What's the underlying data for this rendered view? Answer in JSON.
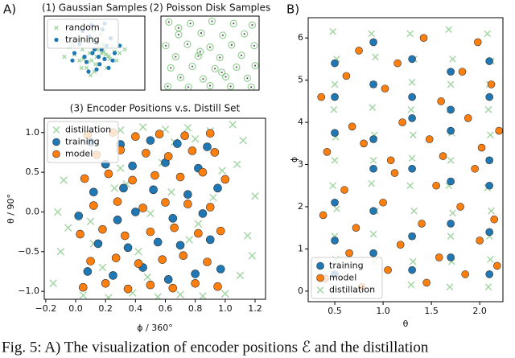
{
  "figure": {
    "panel_labels": [
      "A)",
      "B)"
    ],
    "caption": "Fig. 5: A) The visualization of encoder positions ℰ and the distillation"
  },
  "chart_data": [
    {
      "type": "scatter",
      "title": "(1) Gaussian Samples",
      "xlim": [
        0,
        1
      ],
      "ylim": [
        0,
        1
      ],
      "legend": "upper left",
      "series": [
        {
          "name": "random",
          "color": "#2ca02c",
          "marker": "x",
          "x": [
            0.45,
            0.52,
            0.38,
            0.6,
            0.55,
            0.3,
            0.7,
            0.48,
            0.42,
            0.58,
            0.65,
            0.35,
            0.5,
            0.25,
            0.75,
            0.44,
            0.56,
            0.62,
            0.4,
            0.53,
            0.33,
            0.68,
            0.47,
            0.57,
            0.2,
            0.8,
            0.5,
            0.43,
            0.61,
            0.37,
            0.72,
            0.28,
            0.54,
            0.46,
            0.66,
            0.39,
            0.59,
            0.51,
            0.36,
            0.64
          ],
          "y": [
            0.5,
            0.45,
            0.55,
            0.6,
            0.35,
            0.48,
            0.52,
            0.7,
            0.3,
            0.62,
            0.42,
            0.4,
            0.25,
            0.58,
            0.5,
            0.65,
            0.75,
            0.3,
            0.45,
            0.55,
            0.68,
            0.6,
            0.4,
            0.5,
            0.45,
            0.55,
            0.8,
            0.38,
            0.48,
            0.3,
            0.4,
            0.62,
            0.58,
            0.2,
            0.7,
            0.42,
            0.52,
            0.35,
            0.72,
            0.46
          ]
        },
        {
          "name": "training",
          "color": "#1f77b4",
          "marker": "dot",
          "x": [
            0.5,
            0.62,
            0.4,
            0.55,
            0.7,
            0.35,
            0.45,
            0.6,
            0.52,
            0.3,
            0.66,
            0.48,
            0.57,
            0.42,
            0.75,
            0.38,
            0.58,
            0.5,
            0.64,
            0.44,
            0.54,
            0.28,
            0.68,
            0.47,
            0.6
          ],
          "y": [
            0.55,
            0.6,
            0.45,
            0.35,
            0.5,
            0.62,
            0.72,
            0.42,
            0.28,
            0.5,
            0.7,
            0.5,
            0.55,
            0.38,
            0.6,
            0.8,
            0.82,
            0.65,
            0.3,
            0.25,
            0.45,
            0.4,
            0.4,
            0.88,
            0.9
          ]
        }
      ]
    },
    {
      "type": "scatter",
      "title": "(2) Poisson Disk Samples",
      "xlim": [
        0,
        1
      ],
      "ylim": [
        0,
        1
      ],
      "series": [
        {
          "color": "#2ca02c",
          "marker": "ring",
          "x": [
            0.08,
            0.3,
            0.52,
            0.74,
            0.93,
            0.18,
            0.41,
            0.63,
            0.85,
            0.05,
            0.27,
            0.5,
            0.72,
            0.95,
            0.15,
            0.38,
            0.6,
            0.82,
            0.1,
            0.32,
            0.55,
            0.77,
            0.96,
            0.2,
            0.43,
            0.66,
            0.88,
            0.07,
            0.28,
            0.5,
            0.71,
            0.92,
            0.18,
            0.4,
            0.62
          ],
          "y": [
            0.92,
            0.9,
            0.93,
            0.9,
            0.88,
            0.75,
            0.77,
            0.74,
            0.76,
            0.6,
            0.62,
            0.58,
            0.61,
            0.6,
            0.45,
            0.46,
            0.44,
            0.47,
            0.3,
            0.32,
            0.29,
            0.31,
            0.33,
            0.17,
            0.15,
            0.18,
            0.16,
            0.05,
            0.04,
            0.06,
            0.05,
            0.04,
            0.84,
            0.52,
            0.24
          ]
        }
      ]
    },
    {
      "type": "scatter",
      "title": "(3) Encoder Positions v.s. Distill Set",
      "xlabel": "ϕ / 360°",
      "ylabel": "θ / 90°",
      "xlim": [
        -0.21,
        1.27
      ],
      "ylim": [
        -1.1,
        1.18
      ],
      "legend": "upper left",
      "xticks": [
        {
          "value": -0.2,
          "label": "−0.2"
        },
        {
          "value": 0,
          "label": "0.0"
        },
        0.2,
        0.4,
        0.6,
        0.8,
        {
          "value": 1,
          "label": "1.0"
        },
        1.2
      ],
      "yticks": [
        {
          "value": -1,
          "label": "−1.0"
        },
        {
          "value": -0.5,
          "label": "−0.5"
        },
        {
          "value": 0,
          "label": "0.0"
        },
        0.5,
        {
          "value": 1,
          "label": "1.0"
        }
      ],
      "series": [
        {
          "name": "distillation",
          "color": "#2ca02c",
          "marker": "x",
          "x": [
            -0.15,
            -0.1,
            -0.12,
            -0.08,
            -0.14,
            -0.05,
            1.1,
            1.15,
            1.2,
            1.08,
            1.12,
            1.18,
            0.0,
            0.15,
            0.3,
            0.45,
            0.6,
            0.75,
            0.9,
            1.05,
            0.05,
            0.22,
            0.38,
            0.55,
            0.7,
            0.85,
            1.0,
            0.1,
            0.26,
            0.42,
            0.58,
            0.76,
            0.92,
            0.02,
            0.18,
            0.34,
            0.5,
            0.66,
            0.82,
            0.98,
            0.12,
            0.3,
            0.48,
            0.64,
            0.8
          ],
          "y": [
            -0.9,
            -0.5,
            0.0,
            0.4,
            0.8,
            -0.2,
            -0.8,
            -0.3,
            0.2,
            0.6,
            0.9,
            -0.55,
            1.05,
            1.08,
            1.03,
            1.07,
            1.04,
            1.06,
            1.02,
            1.1,
            -1.05,
            -1.08,
            -1.02,
            -1.07,
            -1.04,
            -1.06,
            -1.03,
            -0.12,
            0.3,
            -0.5,
            0.62,
            -0.35,
            0.18,
            0.7,
            -0.7,
            0.35,
            -0.02,
            0.88,
            -0.15,
            0.52,
            -0.4,
            0.55,
            -0.82,
            0.25,
            0.92
          ]
        },
        {
          "name": "training",
          "color": "#1f77b4",
          "marker": "o",
          "x": [
            0.08,
            0.25,
            0.45,
            0.62,
            0.8,
            0.97,
            0.15,
            0.35,
            0.55,
            0.7,
            0.9,
            0.02,
            0.28,
            0.4,
            0.65,
            0.85,
            0.12,
            0.32,
            0.52,
            0.75,
            0.95,
            0.2,
            0.38,
            0.6,
            0.82,
            0.1,
            0.3,
            0.5,
            0.68,
            0.88
          ],
          "y": [
            -0.75,
            -0.8,
            -0.7,
            -0.85,
            -0.78,
            -0.72,
            -0.4,
            -0.45,
            -0.38,
            -0.42,
            -0.35,
            -0.05,
            -0.1,
            0.0,
            -0.08,
            -0.02,
            0.25,
            0.3,
            0.28,
            0.22,
            0.3,
            0.6,
            0.58,
            0.62,
            0.55,
            0.88,
            0.85,
            0.9,
            0.86,
            0.82
          ]
        },
        {
          "name": "model",
          "color": "#ff7f0e",
          "marker": "o",
          "x": [
            0.05,
            0.2,
            0.35,
            0.5,
            0.65,
            0.8,
            0.95,
            0.1,
            0.27,
            0.42,
            0.58,
            0.72,
            0.88,
            0.03,
            0.18,
            0.33,
            0.5,
            0.66,
            0.82,
            0.97,
            0.12,
            0.28,
            0.45,
            0.6,
            0.75,
            0.9,
            0.06,
            0.22,
            0.38,
            0.53,
            0.7,
            0.85,
            1.0,
            0.14,
            0.3,
            0.47,
            0.62,
            0.78,
            0.93,
            0.08,
            0.25,
            0.4,
            0.56,
            0.73,
            0.9
          ],
          "y": [
            -0.95,
            -0.9,
            -0.97,
            -0.92,
            -0.96,
            -0.9,
            -0.94,
            -0.62,
            -0.58,
            -0.65,
            -0.6,
            -0.55,
            -0.63,
            -0.28,
            -0.22,
            -0.3,
            -0.25,
            -0.2,
            -0.27,
            -0.24,
            0.08,
            0.13,
            0.05,
            0.12,
            0.1,
            0.06,
            0.42,
            0.48,
            0.4,
            0.46,
            0.44,
            0.5,
            0.41,
            0.72,
            0.78,
            0.74,
            0.7,
            0.77,
            0.75,
            0.97,
            1.0,
            0.95,
            0.98,
            0.96,
            0.99
          ]
        }
      ]
    },
    {
      "type": "scatter",
      "xlabel": "θ",
      "ylabel": "ϕ",
      "xlim": [
        0.225,
        2.24
      ],
      "ylim": [
        -0.25,
        6.48
      ],
      "legend": "lower left",
      "xticks": [
        0.5,
        {
          "value": 1,
          "label": "1.0"
        },
        1.5,
        {
          "value": 2,
          "label": "2.0"
        }
      ],
      "yticks": [
        0,
        1,
        2,
        3,
        4,
        5,
        6
      ],
      "series": [
        {
          "name": "training",
          "color": "#1f77b4",
          "marker": "o",
          "x": [
            0.5,
            0.5,
            0.5,
            0.5,
            0.5,
            0.5,
            0.9,
            0.9,
            0.9,
            0.9,
            0.9,
            0.9,
            1.3,
            1.3,
            1.3,
            1.3,
            1.3,
            1.3,
            1.7,
            1.7,
            1.7,
            1.7,
            1.7,
            1.7,
            2.1,
            2.1,
            2.1,
            2.1,
            2.1,
            2.1
          ],
          "y": [
            0.4,
            1.2,
            2.1,
            3.75,
            4.6,
            5.4,
            0.9,
            1.9,
            2.9,
            3.6,
            4.9,
            5.9,
            0.5,
            1.3,
            2.9,
            4.1,
            4.6,
            5.5,
            0.8,
            1.6,
            2.6,
            3.8,
            4.3,
            5.2,
            0.4,
            1.4,
            2.5,
            3.1,
            4.6,
            5.45
          ]
        },
        {
          "name": "model",
          "color": "#ff7f0e",
          "marker": "o",
          "x": [
            0.4,
            0.65,
            0.78,
            1.05,
            1.18,
            1.45,
            1.58,
            1.85,
            2.0,
            2.18,
            0.38,
            0.6,
            0.72,
            1.0,
            1.12,
            1.4,
            1.55,
            1.8,
            1.95,
            2.15,
            0.42,
            0.68,
            0.8,
            1.08,
            1.2,
            1.48,
            1.62,
            1.88,
            2.02,
            2.2,
            0.36,
            0.62,
            0.75,
            1.02,
            1.15,
            1.42,
            1.6,
            1.82,
            1.98,
            2.12
          ],
          "y": [
            0.3,
            0.9,
            0.1,
            0.5,
            1.1,
            0.2,
            0.8,
            0.4,
            1.2,
            0.6,
            1.8,
            2.4,
            1.5,
            2.1,
            2.8,
            1.6,
            2.5,
            2.0,
            2.9,
            1.7,
            3.3,
            3.9,
            3.5,
            3.1,
            4.0,
            3.6,
            3.2,
            4.1,
            3.4,
            3.8,
            4.6,
            5.1,
            5.7,
            4.8,
            5.4,
            6.0,
            4.5,
            5.2,
            5.9,
            4.9
          ]
        },
        {
          "name": "distillation",
          "color": "#2ca02c",
          "marker": "x",
          "x": [
            0.49,
            0.51,
            0.5,
            0.52,
            0.48,
            0.5,
            0.51,
            0.49,
            0.5,
            0.52,
            0.48,
            0.89,
            0.91,
            0.9,
            0.92,
            0.88,
            0.9,
            0.91,
            0.89,
            0.9,
            0.92,
            0.88,
            1.29,
            1.31,
            1.3,
            1.32,
            1.28,
            1.3,
            1.31,
            1.29,
            1.3,
            1.32,
            1.28,
            1.69,
            1.71,
            1.7,
            1.72,
            1.68,
            1.7,
            1.71,
            1.69,
            1.7,
            1.72,
            1.68,
            2.09,
            2.11,
            2.1,
            2.12,
            2.08,
            2.1,
            2.11,
            2.09,
            2.1,
            2.12,
            2.08
          ],
          "y": [
            0.1,
            0.75,
            1.3,
            1.95,
            2.5,
            3.1,
            3.65,
            4.3,
            4.9,
            5.5,
            6.15,
            0.05,
            0.7,
            1.35,
            1.9,
            2.55,
            3.1,
            3.7,
            4.35,
            4.9,
            5.55,
            6.1,
            0.15,
            0.7,
            1.3,
            1.9,
            2.5,
            3.15,
            3.7,
            4.3,
            4.95,
            5.5,
            6.1,
            0.1,
            0.7,
            1.3,
            1.85,
            2.5,
            3.1,
            3.75,
            4.3,
            4.9,
            5.5,
            6.2,
            0.1,
            0.75,
            1.3,
            1.9,
            2.45,
            3.1,
            3.7,
            4.3,
            4.9,
            5.45,
            6.1
          ]
        }
      ]
    }
  ]
}
